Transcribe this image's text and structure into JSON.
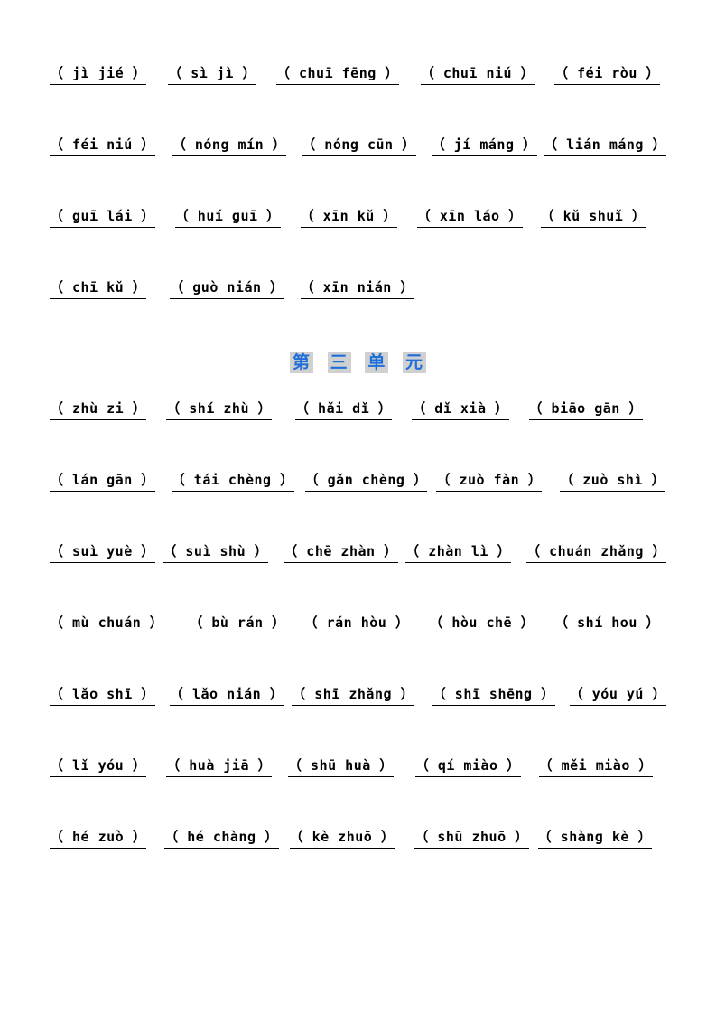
{
  "section1": {
    "rows": [
      {
        "items": [
          "（ jì jié ）",
          "（ sì jì ）",
          "（ chuī fēng ）",
          "（ chuī niú ）",
          "（ féi ròu ）"
        ],
        "gaps": [
          24,
          22,
          24,
          22,
          0
        ]
      },
      {
        "items": [
          "（ féi niú ）",
          "（ nóng mín ）",
          "（ nóng cūn ）",
          "（ jí máng ）",
          "（ lián máng ）"
        ],
        "gaps": [
          20,
          18,
          18,
          8,
          0
        ]
      },
      {
        "items": [
          "（ guī lái ）",
          "（ huí guī ）",
          "（ xīn kǔ ）",
          "（ xīn láo ）",
          "（ kǔ  shuǐ ）"
        ],
        "gaps": [
          22,
          22,
          22,
          20,
          0
        ]
      },
      {
        "items": [
          "（ chī kǔ ）",
          "（ guò nián ）",
          "（ xīn nián ）"
        ],
        "gaps": [
          26,
          18,
          0
        ]
      }
    ]
  },
  "unit_title": [
    "第",
    "三",
    "单",
    "元"
  ],
  "section2": {
    "rows": [
      {
        "items": [
          "（ zhù zi ）",
          "（ shí zhù ）",
          "（ hǎi dǐ ）",
          "（ dǐ xià ）",
          "（ biāo gān ）"
        ],
        "gaps": [
          22,
          26,
          22,
          22,
          0
        ]
      },
      {
        "items": [
          "（ lán gān ）",
          "（ tái chèng ）",
          "（ gǎn chèng ）",
          "（ zuò fàn ）",
          "（ zuò shì ）"
        ],
        "gaps": [
          18,
          12,
          10,
          20,
          0
        ]
      },
      {
        "items": [
          "（ suì yuè ）",
          "（ suì shù ）",
          "（ chē zhàn ）",
          "（ zhàn lì ）",
          "（ chuán zhǎng ）"
        ],
        "gaps": [
          10,
          20,
          10,
          20,
          0
        ]
      },
      {
        "items": [
          "（ mù chuán ）",
          "（ bù rán ）",
          "（ rán hòu ）",
          "（ hòu chē ）",
          "（ shí hou ）"
        ],
        "gaps": [
          28,
          20,
          22,
          22,
          0
        ]
      },
      {
        "items": [
          "（ lǎo shī ）",
          "（ lǎo nián ）",
          "（ shī zhǎng ）",
          "（ shī shēng ）",
          "（ yóu yú ）"
        ],
        "gaps": [
          18,
          10,
          22,
          18,
          0
        ]
      },
      {
        "items": [
          "（ lǐ yóu ）",
          "（ huà jiā ）",
          "（ shū huà ）",
          "（ qí miào ）",
          "（ měi miào ）"
        ],
        "gaps": [
          22,
          18,
          24,
          20,
          0
        ]
      },
      {
        "items": [
          "（ hé zuò ）",
          "（ hé chàng ）",
          "（ kè zhuō ）",
          "（ shū zhuō ）",
          "（ shàng kè ）"
        ],
        "gaps": [
          20,
          12,
          22,
          10,
          0
        ]
      }
    ]
  },
  "colors": {
    "title_color": "#1e6fd9",
    "title_bg": "#d0d0d0",
    "text_color": "#000000",
    "background": "#ffffff",
    "underline": "#000000"
  },
  "typography": {
    "item_fontsize": 15,
    "item_fontweight": "bold",
    "title_fontsize": 19
  }
}
